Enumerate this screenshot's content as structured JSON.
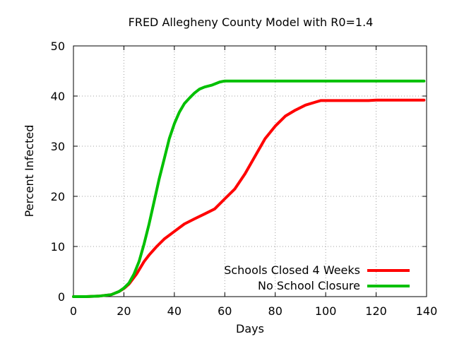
{
  "chart_data": {
    "type": "line",
    "title": "FRED Allegheny County Model with R0=1.4",
    "xlabel": "Days",
    "ylabel": "Percent Infected",
    "xlim": [
      0,
      140
    ],
    "ylim": [
      0,
      50
    ],
    "xticks": [
      0,
      20,
      40,
      60,
      80,
      100,
      120,
      140
    ],
    "yticks": [
      0,
      10,
      20,
      30,
      40,
      50
    ],
    "grid": true,
    "legend_position": "bottom-right",
    "series": [
      {
        "name": "Schools Closed 4 Weeks",
        "color": "#ff0000",
        "points": [
          [
            0,
            0
          ],
          [
            5,
            0
          ],
          [
            10,
            0.1
          ],
          [
            15,
            0.4
          ],
          [
            18,
            1.0
          ],
          [
            20,
            1.6
          ],
          [
            22,
            2.5
          ],
          [
            25,
            4.5
          ],
          [
            28,
            7.0
          ],
          [
            30,
            8.3
          ],
          [
            33,
            10.0
          ],
          [
            36,
            11.5
          ],
          [
            40,
            13.0
          ],
          [
            44,
            14.5
          ],
          [
            48,
            15.5
          ],
          [
            52,
            16.5
          ],
          [
            56,
            17.5
          ],
          [
            60,
            19.5
          ],
          [
            64,
            21.5
          ],
          [
            68,
            24.5
          ],
          [
            72,
            28.0
          ],
          [
            76,
            31.5
          ],
          [
            80,
            34.0
          ],
          [
            84,
            36.0
          ],
          [
            88,
            37.2
          ],
          [
            92,
            38.2
          ],
          [
            96,
            38.8
          ],
          [
            98,
            39.1
          ],
          [
            100,
            39.1
          ],
          [
            117,
            39.1
          ],
          [
            120,
            39.2
          ],
          [
            139,
            39.2
          ]
        ]
      },
      {
        "name": "No School Closure",
        "color": "#00c000",
        "points": [
          [
            0,
            0
          ],
          [
            5,
            0
          ],
          [
            10,
            0.1
          ],
          [
            15,
            0.4
          ],
          [
            18,
            1.0
          ],
          [
            20,
            1.7
          ],
          [
            22,
            2.7
          ],
          [
            24,
            4.5
          ],
          [
            26,
            7.0
          ],
          [
            28,
            10.5
          ],
          [
            30,
            14.5
          ],
          [
            32,
            19.0
          ],
          [
            34,
            23.5
          ],
          [
            36,
            27.5
          ],
          [
            38,
            31.5
          ],
          [
            40,
            34.5
          ],
          [
            42,
            36.8
          ],
          [
            44,
            38.5
          ],
          [
            46,
            39.6
          ],
          [
            48,
            40.6
          ],
          [
            50,
            41.4
          ],
          [
            52,
            41.8
          ],
          [
            55,
            42.2
          ],
          [
            58,
            42.8
          ],
          [
            60,
            43.0
          ],
          [
            80,
            43.0
          ],
          [
            100,
            43.0
          ],
          [
            120,
            43.0
          ],
          [
            139,
            43.0
          ]
        ]
      }
    ]
  }
}
